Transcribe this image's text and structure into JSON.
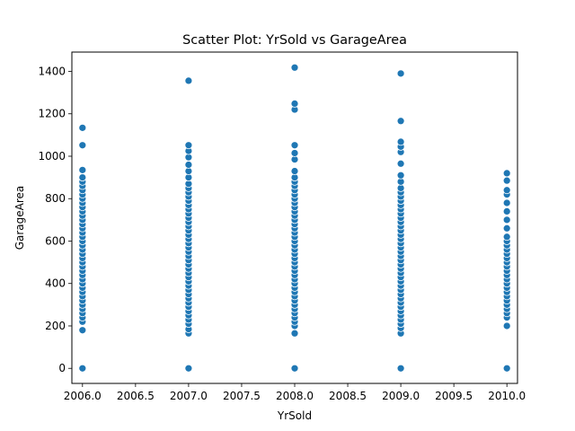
{
  "chart_data": {
    "type": "scatter",
    "title": "Scatter Plot: YrSold vs GarageArea",
    "xlabel": "YrSold",
    "ylabel": "GarageArea",
    "xlim": [
      2005.9,
      2010.1
    ],
    "ylim": [
      -71,
      1491
    ],
    "xticks": [
      2006.0,
      2006.5,
      2007.0,
      2007.5,
      2008.0,
      2008.5,
      2009.0,
      2009.5,
      2010.0
    ],
    "xtick_labels": [
      "2006.0",
      "2006.5",
      "2007.0",
      "2007.5",
      "2008.0",
      "2008.5",
      "2009.0",
      "2009.5",
      "2010.0"
    ],
    "yticks": [
      0,
      200,
      400,
      600,
      800,
      1000,
      1200,
      1400
    ],
    "ytick_labels": [
      "0",
      "200",
      "400",
      "600",
      "800",
      "1000",
      "1200",
      "1400"
    ],
    "grid": false,
    "marker_color": "#1f77b4",
    "series": [
      {
        "x": 2006,
        "values": [
          0,
          180,
          220,
          240,
          260,
          280,
          300,
          320,
          340,
          360,
          380,
          400,
          420,
          440,
          460,
          480,
          500,
          520,
          540,
          560,
          580,
          600,
          620,
          640,
          660,
          680,
          700,
          720,
          740,
          760,
          780,
          800,
          820,
          840,
          860,
          880,
          900,
          935,
          1052,
          1134
        ]
      },
      {
        "x": 2007,
        "values": [
          0,
          165,
          185,
          210,
          230,
          250,
          270,
          290,
          310,
          330,
          350,
          370,
          390,
          410,
          430,
          450,
          470,
          490,
          510,
          530,
          550,
          570,
          590,
          610,
          630,
          650,
          670,
          690,
          710,
          730,
          750,
          770,
          790,
          810,
          830,
          850,
          870,
          900,
          930,
          960,
          995,
          1025,
          1052,
          1356
        ]
      },
      {
        "x": 2008,
        "values": [
          0,
          165,
          200,
          220,
          240,
          260,
          280,
          300,
          320,
          340,
          360,
          380,
          400,
          420,
          440,
          460,
          480,
          500,
          520,
          540,
          560,
          580,
          600,
          620,
          640,
          660,
          680,
          700,
          720,
          740,
          760,
          780,
          800,
          820,
          840,
          860,
          880,
          900,
          930,
          985,
          1015,
          1052,
          1220,
          1248,
          1418
        ]
      },
      {
        "x": 2009,
        "values": [
          0,
          165,
          190,
          210,
          230,
          250,
          270,
          290,
          310,
          330,
          350,
          370,
          390,
          410,
          430,
          450,
          470,
          490,
          510,
          530,
          550,
          570,
          590,
          610,
          630,
          650,
          670,
          690,
          710,
          730,
          750,
          770,
          790,
          810,
          830,
          850,
          880,
          910,
          965,
          1020,
          1045,
          1068,
          1166,
          1390
        ]
      },
      {
        "x": 2010,
        "values": [
          0,
          200,
          240,
          260,
          280,
          300,
          320,
          340,
          360,
          380,
          400,
          420,
          440,
          460,
          480,
          500,
          520,
          540,
          560,
          580,
          600,
          620,
          660,
          700,
          740,
          780,
          820,
          840,
          885,
          920
        ]
      }
    ]
  }
}
